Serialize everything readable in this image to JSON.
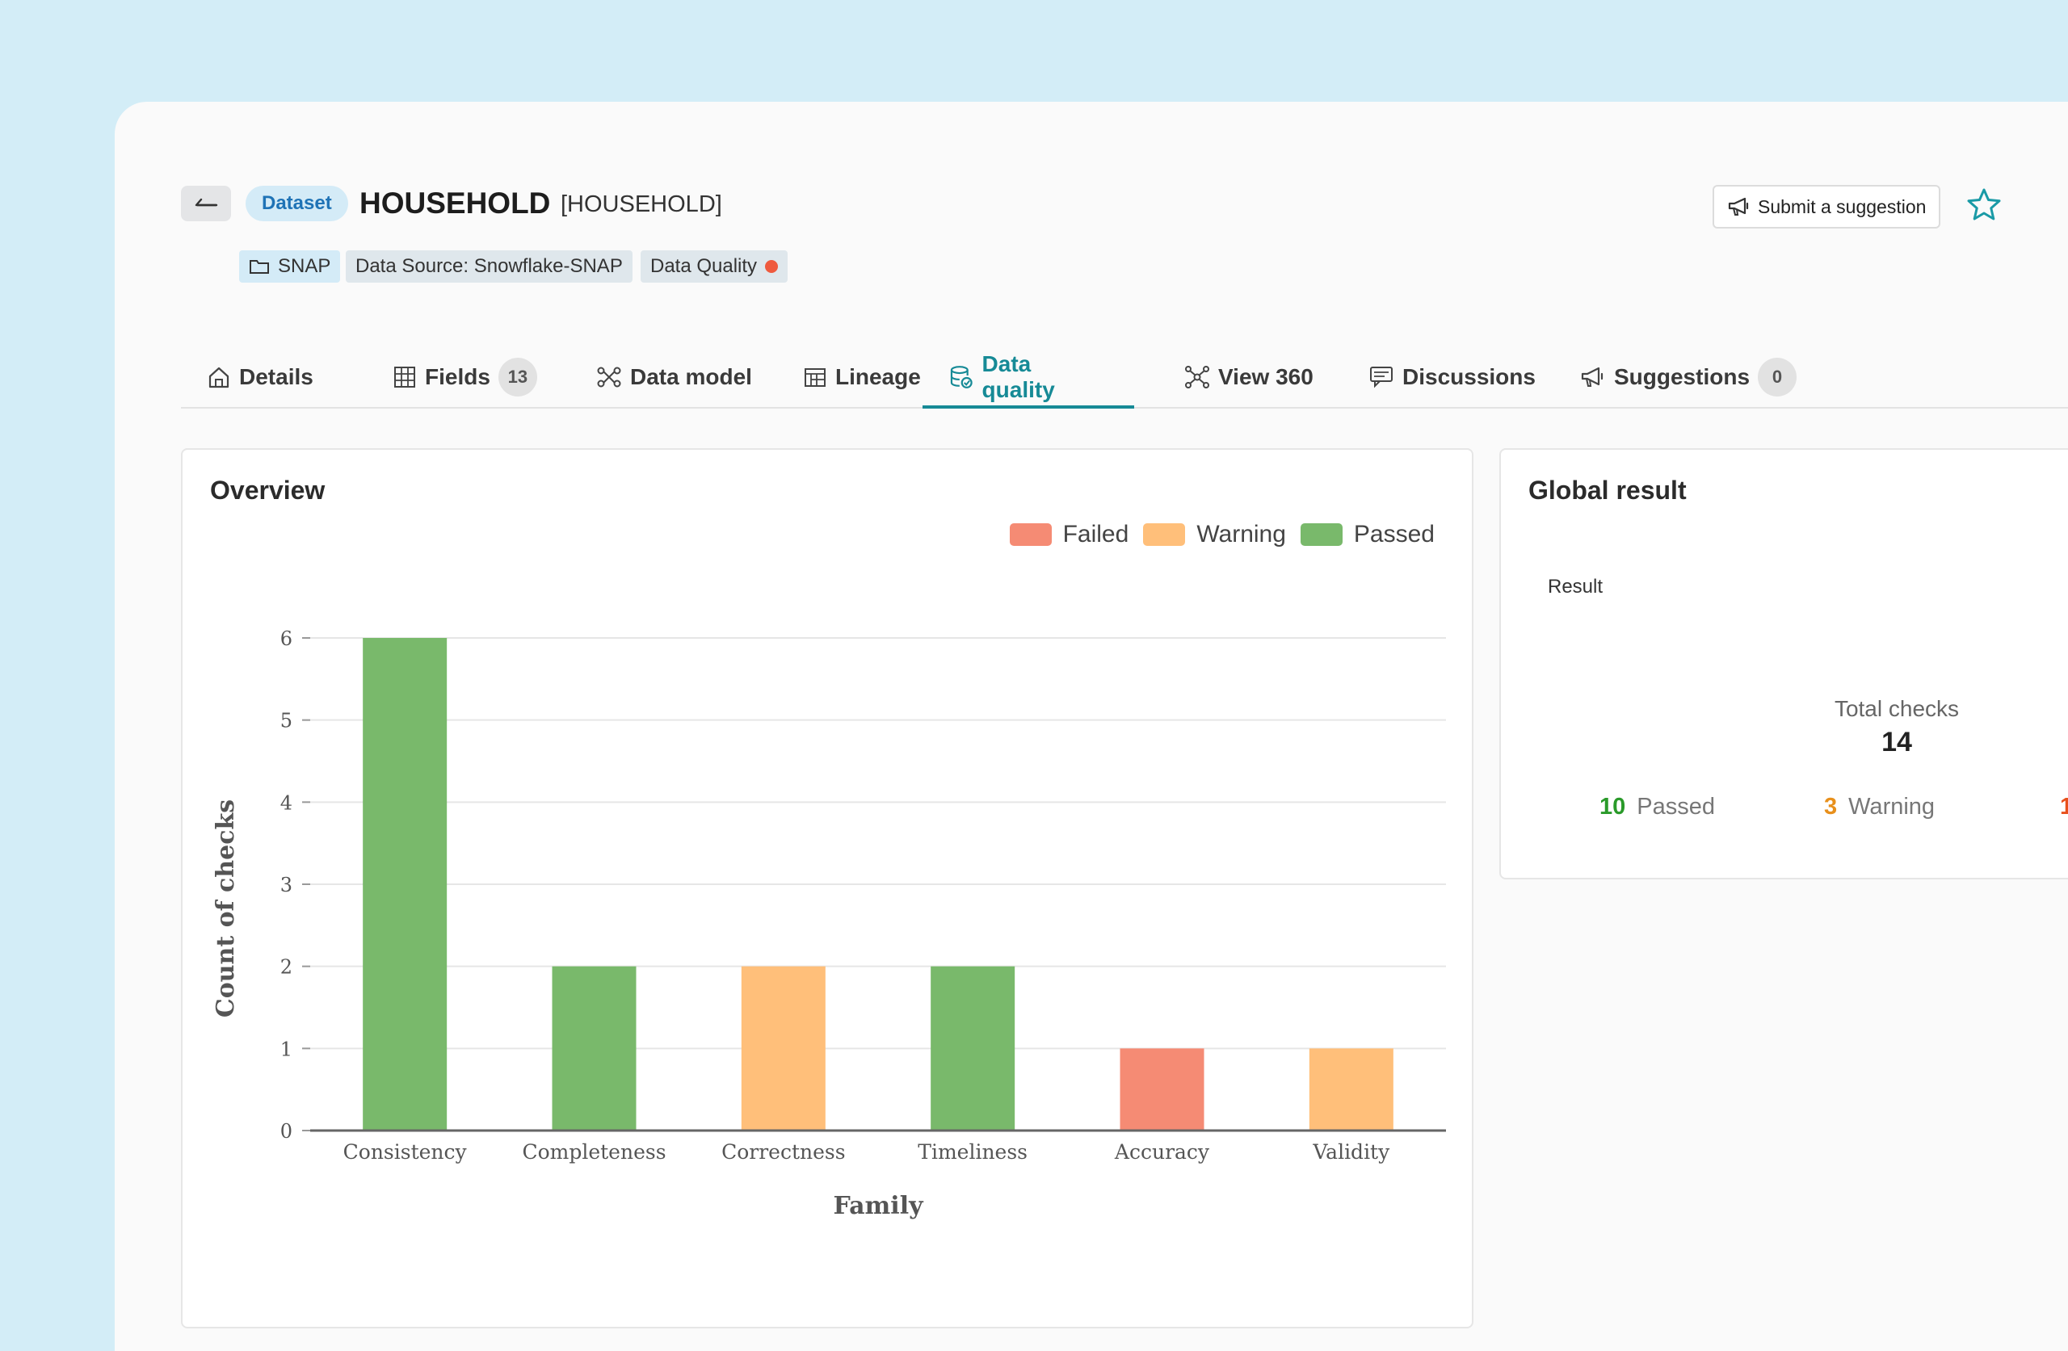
{
  "header": {
    "back_icon": "arrow-left-icon",
    "badge": "Dataset",
    "title": "HOUSEHOLD",
    "subtitle": "[HOUSEHOLD]",
    "suggest_label": "Submit a suggestion",
    "chips": {
      "folder": "SNAP",
      "source": "Data Source: Snowflake-SNAP",
      "quality": "Data Quality"
    }
  },
  "tabs": [
    {
      "label": "Details",
      "icon": "home-icon"
    },
    {
      "label": "Fields",
      "icon": "grid-icon",
      "count": "13"
    },
    {
      "label": "Data model",
      "icon": "data-model-icon"
    },
    {
      "label": "Lineage",
      "icon": "lineage-icon"
    },
    {
      "label": "Data quality",
      "icon": "database-check-icon",
      "active": true
    },
    {
      "label": "View 360",
      "icon": "network-icon"
    },
    {
      "label": "Discussions",
      "icon": "chat-icon"
    },
    {
      "label": "Suggestions",
      "icon": "megaphone-icon",
      "count": "0"
    }
  ],
  "overview": {
    "title": "Overview",
    "legend": [
      {
        "label": "Failed",
        "color": "#f58b74"
      },
      {
        "label": "Warning",
        "color": "#ffbf7a"
      },
      {
        "label": "Passed",
        "color": "#79b96b"
      }
    ]
  },
  "chart_data": {
    "type": "bar",
    "categories": [
      "Consistency",
      "Completeness",
      "Correctness",
      "Timeliness",
      "Accuracy",
      "Validity"
    ],
    "values": [
      6,
      2,
      2,
      2,
      1,
      1
    ],
    "status": [
      "Passed",
      "Passed",
      "Warning",
      "Passed",
      "Failed",
      "Warning"
    ],
    "xlabel": "Family",
    "ylabel": "Count of checks",
    "ylim": [
      0,
      6
    ],
    "yticks": [
      0,
      1,
      2,
      3,
      4,
      5,
      6
    ],
    "grid": true,
    "legend_position": "top-right"
  },
  "global": {
    "title": "Global result",
    "result_label": "Result",
    "total_label": "Total checks",
    "total_value": "14",
    "passed_count": "10",
    "passed_label": "Passed",
    "warning_count": "3",
    "warning_label": "Warning",
    "failed_count_visible": "1"
  }
}
